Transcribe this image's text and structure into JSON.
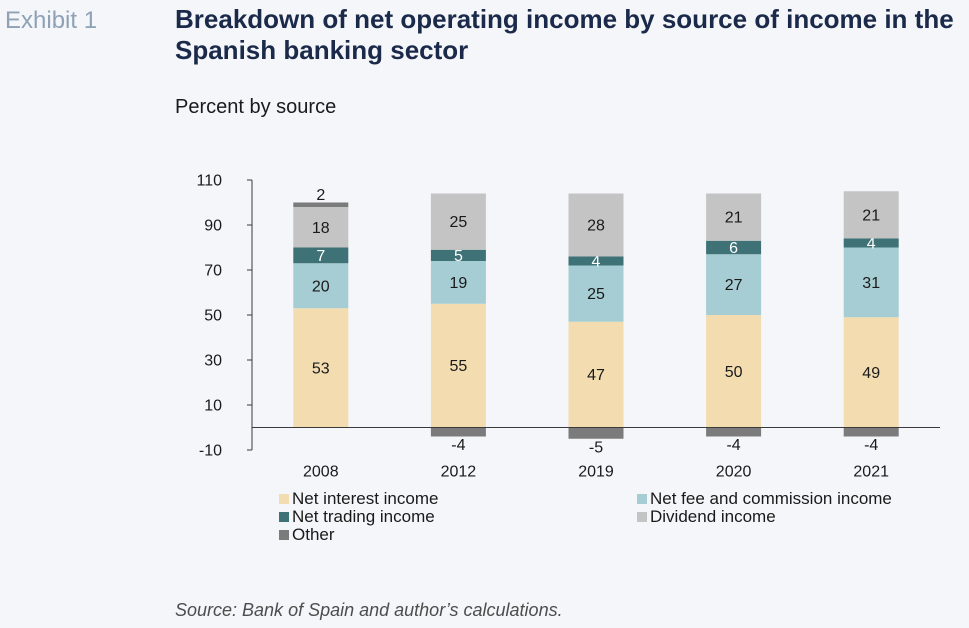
{
  "exhibit_label": "Exhibit 1",
  "source": "Source: Bank of Spain and author’s calculations.",
  "chart_data": {
    "type": "bar",
    "stacked": true,
    "title": "Breakdown of net operating income by source of income in the Spanish banking sector",
    "subtitle": "Percent by source",
    "xlabel": "",
    "ylabel": "",
    "categories": [
      "2008",
      "2012",
      "2019",
      "2020",
      "2021"
    ],
    "series": [
      {
        "name": "Net interest income",
        "color": "#f2dcb0",
        "label_color": "#1a1a1a",
        "values": [
          53,
          55,
          47,
          50,
          49
        ]
      },
      {
        "name": "Net fee and commission income",
        "color": "#a6cdd3",
        "label_color": "#1a1a1a",
        "values": [
          20,
          19,
          25,
          27,
          31
        ]
      },
      {
        "name": "Net trading income",
        "color": "#3e7276",
        "label_color": "#ffffff",
        "values": [
          7,
          5,
          4,
          6,
          4
        ]
      },
      {
        "name": "Dividend income",
        "color": "#c4c4c4",
        "label_color": "#1a1a1a",
        "values": [
          18,
          25,
          28,
          21,
          21
        ]
      },
      {
        "name": "Other",
        "color": "#7b7b7b",
        "label_color": "#1a1a1a",
        "values": [
          2,
          -4,
          -5,
          -4,
          -4
        ]
      }
    ],
    "ylim": [
      -10,
      110
    ],
    "yticks": [
      110,
      90,
      70,
      50,
      30,
      10,
      -10
    ],
    "grid": false,
    "legend": "bottom"
  }
}
